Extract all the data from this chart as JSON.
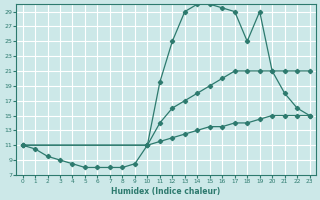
{
  "xlabel": "Humidex (Indice chaleur)",
  "bg_color": "#cce8e8",
  "grid_color": "#ffffff",
  "line_color": "#2d7a6e",
  "xlim": [
    -0.5,
    23.5
  ],
  "ylim": [
    7,
    30
  ],
  "yticks": [
    7,
    9,
    11,
    13,
    15,
    17,
    19,
    21,
    23,
    25,
    27,
    29
  ],
  "xticks": [
    0,
    1,
    2,
    3,
    4,
    5,
    6,
    7,
    8,
    9,
    10,
    11,
    12,
    13,
    14,
    15,
    16,
    17,
    18,
    19,
    20,
    21,
    22,
    23
  ],
  "line_upper_x": [
    0,
    10,
    11,
    12,
    13,
    14,
    15,
    16,
    17,
    18,
    19,
    20,
    21,
    22,
    23
  ],
  "line_upper_y": [
    11,
    11,
    19.5,
    25,
    29,
    30,
    30,
    29.5,
    29,
    25,
    29,
    21,
    18,
    16,
    15
  ],
  "line_mid_x": [
    0,
    10,
    11,
    12,
    13,
    14,
    15,
    16,
    17,
    18,
    19,
    20,
    21,
    22,
    23
  ],
  "line_mid_y": [
    11,
    11,
    14,
    16,
    17,
    18,
    19,
    20,
    21,
    21,
    21,
    21,
    21,
    21,
    21
  ],
  "line_lower_x": [
    0,
    1,
    2,
    3,
    4,
    5,
    6,
    7,
    8,
    9,
    10,
    11,
    12,
    13,
    14,
    15,
    16,
    17,
    18,
    19,
    20,
    21,
    22,
    23
  ],
  "line_lower_y": [
    11,
    10.5,
    9.5,
    9,
    8.5,
    8,
    8,
    8,
    8,
    8.5,
    11,
    11.5,
    12,
    12.5,
    13,
    13.5,
    13.5,
    14,
    14,
    14.5,
    15,
    15,
    15,
    15
  ]
}
